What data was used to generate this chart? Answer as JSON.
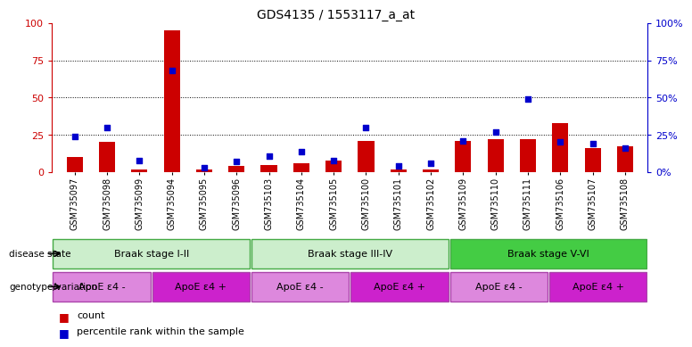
{
  "title": "GDS4135 / 1553117_a_at",
  "samples": [
    "GSM735097",
    "GSM735098",
    "GSM735099",
    "GSM735094",
    "GSM735095",
    "GSM735096",
    "GSM735103",
    "GSM735104",
    "GSM735105",
    "GSM735100",
    "GSM735101",
    "GSM735102",
    "GSM735109",
    "GSM735110",
    "GSM735111",
    "GSM735106",
    "GSM735107",
    "GSM735108"
  ],
  "counts": [
    10,
    20,
    2,
    95,
    2,
    4,
    5,
    6,
    8,
    21,
    2,
    2,
    21,
    22,
    22,
    33,
    16,
    17
  ],
  "percentiles": [
    24,
    30,
    8,
    68,
    3,
    7,
    11,
    14,
    8,
    30,
    4,
    6,
    21,
    27,
    49,
    20,
    19,
    16
  ],
  "bar_color": "#cc0000",
  "dot_color": "#0000cc",
  "left_axis_color": "#cc0000",
  "right_axis_color": "#0000cc",
  "ylim_left": [
    0,
    100
  ],
  "ylim_right": [
    0,
    100
  ],
  "yticks": [
    0,
    25,
    50,
    75,
    100
  ],
  "grid_lines": [
    25,
    50,
    75
  ],
  "disease_state_labels": [
    "Braak stage I-II",
    "Braak stage III-IV",
    "Braak stage V-VI"
  ],
  "disease_state_ranges": [
    [
      0,
      6
    ],
    [
      6,
      12
    ],
    [
      12,
      18
    ]
  ],
  "disease_state_color_light": "#cceecc",
  "disease_state_color_bright": "#44cc44",
  "disease_state_border": "#44aa44",
  "genotype_labels": [
    "ApoE ε4 -",
    "ApoE ε4 +",
    "ApoE ε4 -",
    "ApoE ε4 +",
    "ApoE ε4 -",
    "ApoE ε4 +"
  ],
  "genotype_ranges": [
    [
      0,
      3
    ],
    [
      3,
      6
    ],
    [
      6,
      9
    ],
    [
      9,
      12
    ],
    [
      12,
      15
    ],
    [
      15,
      18
    ]
  ],
  "genotype_color_minus": "#dd88dd",
  "genotype_color_plus": "#cc22cc",
  "label_disease_state": "disease state",
  "label_genotype": "genotype/variation",
  "legend_count": "count",
  "legend_percentile": "percentile rank within the sample",
  "bg_color": "#ffffff",
  "xtick_bg": "#dddddd",
  "bar_width": 0.5,
  "dot_size": 20
}
